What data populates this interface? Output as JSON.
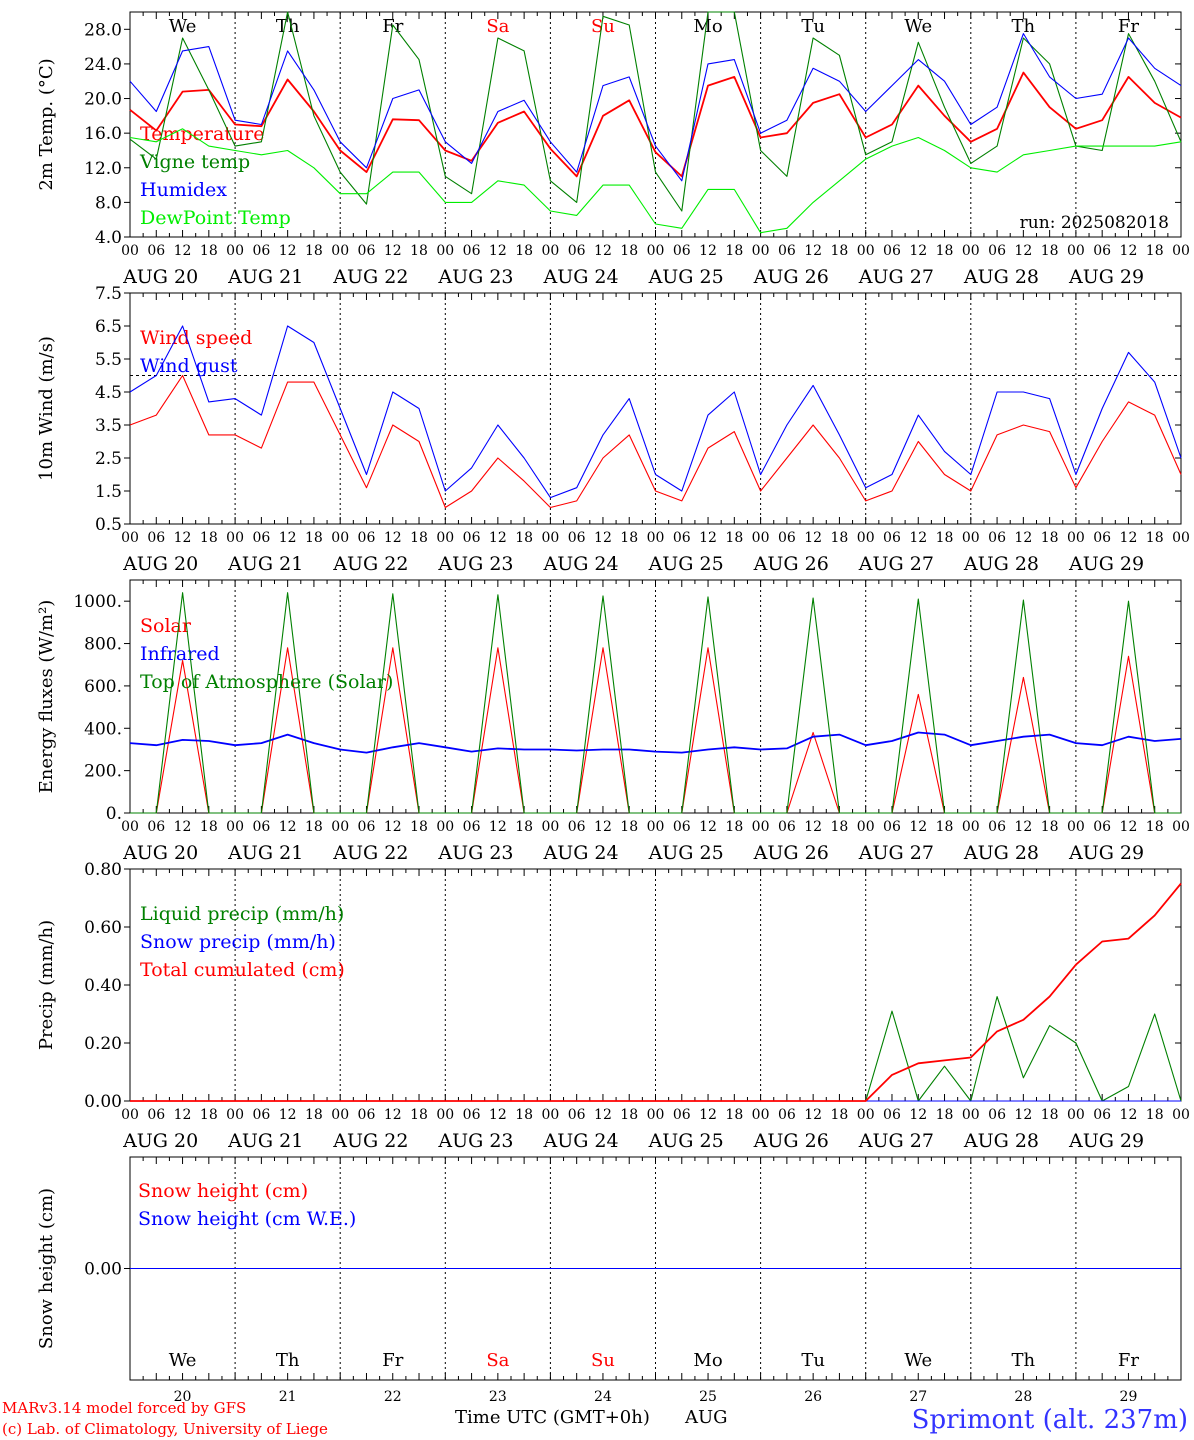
{
  "meta": {
    "run_label": "run: 2025082018",
    "location": "Sprimont (alt. 237m)",
    "credit_line1": "MARv3.14 model forced by GFS",
    "credit_line2": "(c) Lab. of Climatology, University of Liege",
    "x_axis_label": "Time UTC (GMT+0h)",
    "month": "AUG"
  },
  "days": [
    {
      "date": "AUG 20",
      "num": "20",
      "weekday": "We",
      "weekend": false
    },
    {
      "date": "AUG 21",
      "num": "21",
      "weekday": "Th",
      "weekend": false
    },
    {
      "date": "AUG 22",
      "num": "22",
      "weekday": "Fr",
      "weekend": false
    },
    {
      "date": "AUG 23",
      "num": "23",
      "weekday": "Sa",
      "weekend": true
    },
    {
      "date": "AUG 24",
      "num": "24",
      "weekday": "Su",
      "weekend": true
    },
    {
      "date": "AUG 25",
      "num": "25",
      "weekday": "Mo",
      "weekend": false
    },
    {
      "date": "AUG 26",
      "num": "26",
      "weekday": "Tu",
      "weekend": false
    },
    {
      "date": "AUG 27",
      "num": "27",
      "weekday": "We",
      "weekend": false
    },
    {
      "date": "AUG 28",
      "num": "28",
      "weekday": "Th",
      "weekend": false
    },
    {
      "date": "AUG 29",
      "num": "29",
      "weekday": "Fr",
      "weekend": false
    }
  ],
  "hour_labels": [
    "00",
    "06",
    "12",
    "18"
  ],
  "final_hour_label": "00",
  "colors": {
    "red": "#ff0000",
    "green": "#008000",
    "blue": "#0000ff",
    "lime": "#00ee00",
    "weekend": "#ff0000",
    "location": "#3333ff"
  },
  "chart_data": [
    {
      "id": "temp",
      "type": "line",
      "ylabel": "2m Temp. (°C)",
      "ylim": [
        4,
        30
      ],
      "ticks": [
        4.0,
        8.0,
        12.0,
        16.0,
        20.0,
        24.0,
        28.0
      ],
      "tick_labels": [
        "4.0",
        "8.0",
        "12.0",
        "16.0",
        "20.0",
        "24.0",
        "28.0"
      ],
      "x_hours": [
        0,
        6,
        12,
        18,
        24,
        30,
        36,
        42,
        48,
        54,
        60,
        66,
        72,
        78,
        84,
        90,
        96,
        102,
        108,
        114,
        120,
        126,
        132,
        138,
        144,
        150,
        156,
        162,
        168,
        174,
        180,
        186,
        192,
        198,
        204,
        210,
        216,
        222,
        228,
        234,
        240
      ],
      "series": [
        {
          "name": "Temperature",
          "color": "red",
          "values": [
            18.7,
            16.3,
            20.8,
            21.0,
            17.0,
            16.8,
            22.2,
            18.5,
            14.0,
            11.5,
            17.6,
            17.5,
            14.0,
            12.8,
            17.2,
            18.5,
            14.2,
            11.0,
            18.0,
            19.8,
            13.8,
            11.0,
            21.5,
            22.5,
            15.5,
            16.0,
            19.5,
            20.5,
            15.5,
            17.0,
            21.5,
            18.0,
            15.0,
            16.5,
            23.0,
            19.0,
            16.5,
            17.5,
            22.5,
            19.5,
            17.8
          ]
        },
        {
          "name": "Vigne temp",
          "color": "green",
          "values": [
            15.3,
            13.0,
            27.0,
            21.0,
            14.5,
            15.0,
            30.5,
            18.0,
            11.5,
            7.8,
            28.5,
            24.5,
            11.0,
            9.0,
            27.0,
            25.5,
            10.5,
            8.0,
            29.5,
            28.5,
            11.5,
            7.0,
            30.0,
            31.0,
            14.0,
            11.0,
            27.0,
            25.0,
            13.5,
            15.0,
            26.5,
            19.0,
            12.5,
            14.5,
            27.0,
            24.0,
            14.5,
            14.0,
            27.5,
            22.0,
            15.0
          ]
        },
        {
          "name": "Humidex",
          "color": "blue",
          "values": [
            22.0,
            18.5,
            25.5,
            26.0,
            17.5,
            17.0,
            25.5,
            21.0,
            15.0,
            12.0,
            20.0,
            21.0,
            15.0,
            12.5,
            18.5,
            19.8,
            15.0,
            11.5,
            21.5,
            22.5,
            14.5,
            10.5,
            24.0,
            24.5,
            16.0,
            17.5,
            23.5,
            22.0,
            18.5,
            21.5,
            24.5,
            22.0,
            17.0,
            19.0,
            27.5,
            22.5,
            20.0,
            20.5,
            27.0,
            23.5,
            21.5
          ]
        },
        {
          "name": "DewPoint Temp",
          "color": "lime",
          "values": [
            15.5,
            15.0,
            16.5,
            14.5,
            14.0,
            13.5,
            14.0,
            12.0,
            9.0,
            9.0,
            11.5,
            11.5,
            8.0,
            8.0,
            10.5,
            10.0,
            7.0,
            6.5,
            10.0,
            10.0,
            5.5,
            5.0,
            9.5,
            9.5,
            4.5,
            5.0,
            8.0,
            10.5,
            13.0,
            14.5,
            15.5,
            14.0,
            12.0,
            11.5,
            13.5,
            14.0,
            14.5,
            14.5,
            14.5,
            14.5,
            15.0
          ]
        }
      ]
    },
    {
      "id": "wind",
      "type": "line",
      "ylabel": "10m Wind (m/s)",
      "ylim": [
        0.5,
        7.5
      ],
      "ticks": [
        0.5,
        1.5,
        2.5,
        3.5,
        4.5,
        5.5,
        6.5,
        7.5
      ],
      "tick_labels": [
        "0.5",
        "1.5",
        "2.5",
        "3.5",
        "4.5",
        "5.5",
        "6.5",
        "7.5"
      ],
      "ref_line": 5.0,
      "x_hours": [
        0,
        6,
        12,
        18,
        24,
        30,
        36,
        42,
        48,
        54,
        60,
        66,
        72,
        78,
        84,
        90,
        96,
        102,
        108,
        114,
        120,
        126,
        132,
        138,
        144,
        150,
        156,
        162,
        168,
        174,
        180,
        186,
        192,
        198,
        204,
        210,
        216,
        222,
        228,
        234,
        240
      ],
      "series": [
        {
          "name": "Wind speed",
          "color": "red",
          "values": [
            3.5,
            3.8,
            5.0,
            3.2,
            3.2,
            2.8,
            4.8,
            4.8,
            3.2,
            1.6,
            3.5,
            3.0,
            1.0,
            1.5,
            2.5,
            1.8,
            1.0,
            1.2,
            2.5,
            3.2,
            1.5,
            1.2,
            2.8,
            3.3,
            1.5,
            2.5,
            3.5,
            2.5,
            1.2,
            1.5,
            3.0,
            2.0,
            1.5,
            3.2,
            3.5,
            3.3,
            1.6,
            3.0,
            4.2,
            3.8,
            2.0
          ]
        },
        {
          "name": "Wind gust",
          "color": "blue",
          "values": [
            4.5,
            5.0,
            6.5,
            4.2,
            4.3,
            3.8,
            6.5,
            6.0,
            4.0,
            2.0,
            4.5,
            4.0,
            1.5,
            2.2,
            3.5,
            2.5,
            1.3,
            1.6,
            3.2,
            4.3,
            2.0,
            1.5,
            3.8,
            4.5,
            2.0,
            3.5,
            4.7,
            3.2,
            1.6,
            2.0,
            3.8,
            2.7,
            2.0,
            4.5,
            4.5,
            4.3,
            2.0,
            4.0,
            5.7,
            4.8,
            2.5
          ]
        }
      ]
    },
    {
      "id": "energy",
      "type": "line",
      "ylabel": "Energy fluxes (W/m²)",
      "ylim": [
        0,
        1100
      ],
      "ticks": [
        0,
        200,
        400,
        600,
        800,
        1000
      ],
      "tick_labels": [
        "0.",
        "200.",
        "400.",
        "600.",
        "800.",
        "1000."
      ],
      "x_hours": [
        0,
        6,
        12,
        18,
        24,
        30,
        36,
        42,
        48,
        54,
        60,
        66,
        72,
        78,
        84,
        90,
        96,
        102,
        108,
        114,
        120,
        126,
        132,
        138,
        144,
        150,
        156,
        162,
        168,
        174,
        180,
        186,
        192,
        198,
        204,
        210,
        216,
        222,
        228,
        234,
        240
      ],
      "series": [
        {
          "name": "Solar",
          "color": "red",
          "values": [
            0,
            0,
            720,
            0,
            0,
            0,
            780,
            0,
            0,
            0,
            780,
            0,
            0,
            0,
            780,
            0,
            0,
            0,
            780,
            0,
            0,
            0,
            780,
            0,
            0,
            0,
            380,
            0,
            0,
            0,
            560,
            0,
            0,
            0,
            640,
            0,
            0,
            0,
            740,
            0,
            0
          ]
        },
        {
          "name": "Infrared",
          "color": "blue",
          "values": [
            330,
            320,
            345,
            340,
            320,
            330,
            370,
            330,
            300,
            285,
            310,
            330,
            310,
            290,
            305,
            300,
            300,
            295,
            300,
            300,
            290,
            285,
            300,
            310,
            300,
            305,
            360,
            370,
            320,
            340,
            380,
            370,
            320,
            340,
            360,
            370,
            330,
            320,
            360,
            340,
            350
          ]
        },
        {
          "name": "Top of Atmosphere (Solar)",
          "color": "green",
          "values": [
            0,
            0,
            1040,
            0,
            0,
            0,
            1040,
            0,
            0,
            0,
            1035,
            0,
            0,
            0,
            1030,
            0,
            0,
            0,
            1025,
            0,
            0,
            0,
            1020,
            0,
            0,
            0,
            1015,
            0,
            0,
            0,
            1010,
            0,
            0,
            0,
            1005,
            0,
            0,
            0,
            1000,
            0,
            0
          ]
        }
      ]
    },
    {
      "id": "precip",
      "type": "line",
      "ylabel": "Precip (mm/h)",
      "ylim": [
        0,
        0.8
      ],
      "ticks": [
        0,
        0.2,
        0.4,
        0.6,
        0.8
      ],
      "tick_labels": [
        "0.00",
        "0.20",
        "0.40",
        "0.60",
        "0.80"
      ],
      "x_hours": [
        0,
        6,
        12,
        18,
        24,
        30,
        36,
        42,
        48,
        54,
        60,
        66,
        72,
        78,
        84,
        90,
        96,
        102,
        108,
        114,
        120,
        126,
        132,
        138,
        144,
        150,
        156,
        162,
        168,
        174,
        180,
        186,
        192,
        198,
        204,
        210,
        216,
        222,
        228,
        234,
        240
      ],
      "series": [
        {
          "name": "Liquid precip (mm/h)",
          "color": "green",
          "values": [
            0,
            0,
            0,
            0,
            0,
            0,
            0,
            0,
            0,
            0,
            0,
            0,
            0,
            0,
            0,
            0,
            0,
            0,
            0,
            0,
            0,
            0,
            0,
            0,
            0,
            0,
            0,
            0,
            0,
            0.31,
            0,
            0.12,
            0,
            0.36,
            0.08,
            0.26,
            0.2,
            0,
            0.05,
            0.3,
            0
          ]
        },
        {
          "name": "Snow precip (mm/h)",
          "color": "blue",
          "values": [
            0,
            0,
            0,
            0,
            0,
            0,
            0,
            0,
            0,
            0,
            0,
            0,
            0,
            0,
            0,
            0,
            0,
            0,
            0,
            0,
            0,
            0,
            0,
            0,
            0,
            0,
            0,
            0,
            0,
            0,
            0,
            0,
            0,
            0,
            0,
            0,
            0,
            0,
            0,
            0,
            0
          ]
        },
        {
          "name": "Total cumulated (cm)",
          "color": "red",
          "values": [
            0,
            0,
            0,
            0,
            0,
            0,
            0,
            0,
            0,
            0,
            0,
            0,
            0,
            0,
            0,
            0,
            0,
            0,
            0,
            0,
            0,
            0,
            0,
            0,
            0,
            0,
            0,
            0,
            0,
            0.09,
            0.13,
            0.14,
            0.15,
            0.24,
            0.28,
            0.36,
            0.47,
            0.55,
            0.56,
            0.64,
            0.75
          ]
        }
      ]
    },
    {
      "id": "snow",
      "type": "line",
      "ylabel": "Snow height (cm)",
      "ylim": [
        -1,
        1
      ],
      "ticks": [
        0
      ],
      "tick_labels": [
        "0.00"
      ],
      "x_hours": [
        0,
        240
      ],
      "series": [
        {
          "name": "Snow height (cm)",
          "color": "red",
          "values": [
            0,
            0
          ]
        },
        {
          "name": "Snow height (cm W.E.)",
          "color": "blue",
          "values": [
            0,
            0
          ]
        }
      ]
    }
  ]
}
